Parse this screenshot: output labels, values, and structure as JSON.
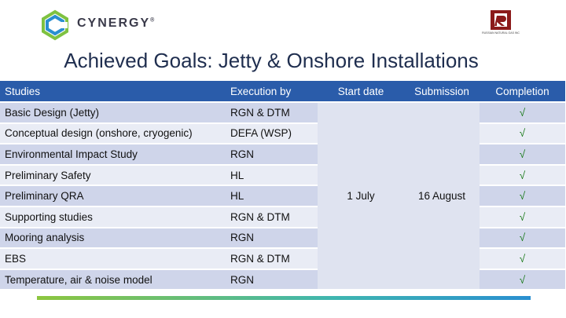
{
  "header": {
    "brand_name": "CYNERGY",
    "brand_mark": "®",
    "rgn_logo_caption": "RUSSIAN NATURAL GAS INC"
  },
  "title": "Achieved Goals: Jetty & Onshore Installations",
  "table": {
    "columns": [
      "Studies",
      "Execution by",
      "Start date",
      "Submission",
      "Completion"
    ],
    "start_date": "1 July",
    "submission": "16 August",
    "rows": [
      {
        "study": "Basic Design (Jetty)",
        "execution": "RGN & DTM",
        "completion": "√"
      },
      {
        "study": "Conceptual design (onshore, cryogenic)",
        "execution": "DEFA (WSP)",
        "completion": "√"
      },
      {
        "study": "Environmental Impact Study",
        "execution": "RGN",
        "completion": "√"
      },
      {
        "study": "Preliminary Safety",
        "execution": "HL",
        "completion": "√"
      },
      {
        "study": "Preliminary QRA",
        "execution": "HL",
        "completion": "√"
      },
      {
        "study": "Supporting studies",
        "execution": "RGN & DTM",
        "completion": "√"
      },
      {
        "study": "Mooring analysis",
        "execution": "RGN",
        "completion": "√"
      },
      {
        "study": "EBS",
        "execution": "RGN & DTM",
        "completion": "√"
      },
      {
        "study": "Temperature, air & noise model",
        "execution": "RGN",
        "completion": "√"
      }
    ]
  }
}
